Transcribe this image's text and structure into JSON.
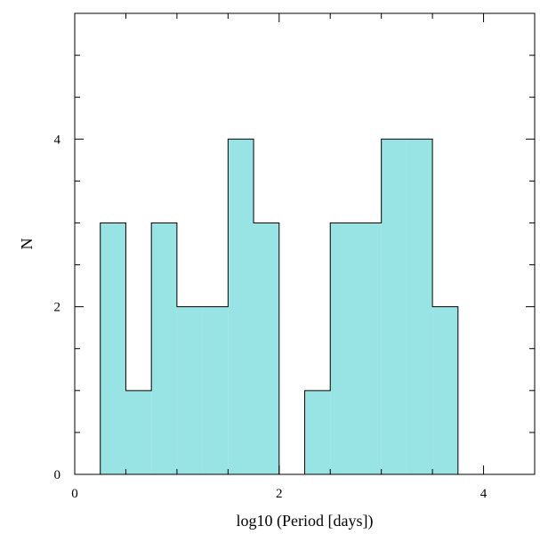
{
  "chart_data": {
    "type": "bar",
    "xlabel": "log10 (Period [days])",
    "ylabel": "N",
    "xlim": [
      0,
      4.5
    ],
    "ylim": [
      0,
      5.5
    ],
    "bin_width": 0.25,
    "bins": [
      {
        "x0": 0.25,
        "x1": 0.5,
        "count": 3
      },
      {
        "x0": 0.5,
        "x1": 0.75,
        "count": 1
      },
      {
        "x0": 0.75,
        "x1": 1.0,
        "count": 3
      },
      {
        "x0": 1.0,
        "x1": 1.25,
        "count": 2
      },
      {
        "x0": 1.25,
        "x1": 1.5,
        "count": 2
      },
      {
        "x0": 1.5,
        "x1": 1.75,
        "count": 4
      },
      {
        "x0": 1.75,
        "x1": 2.0,
        "count": 3
      },
      {
        "x0": 2.0,
        "x1": 2.25,
        "count": 0
      },
      {
        "x0": 2.25,
        "x1": 2.5,
        "count": 1
      },
      {
        "x0": 2.5,
        "x1": 2.75,
        "count": 3
      },
      {
        "x0": 2.75,
        "x1": 3.0,
        "count": 3
      },
      {
        "x0": 3.0,
        "x1": 3.25,
        "count": 4
      },
      {
        "x0": 3.25,
        "x1": 3.5,
        "count": 4
      },
      {
        "x0": 3.5,
        "x1": 3.75,
        "count": 2
      }
    ],
    "x_major_ticks": [
      0,
      2,
      4
    ],
    "x_tick_labels": [
      "0",
      "2",
      "4"
    ],
    "x_minor_step": 0.5,
    "y_major_ticks": [
      0,
      2,
      4
    ],
    "y_tick_labels": [
      "0",
      "2",
      "4"
    ],
    "y_minor_step": 0.5,
    "fill_color": "#98e3e3",
    "edge_color": "#000000",
    "grid": false
  }
}
